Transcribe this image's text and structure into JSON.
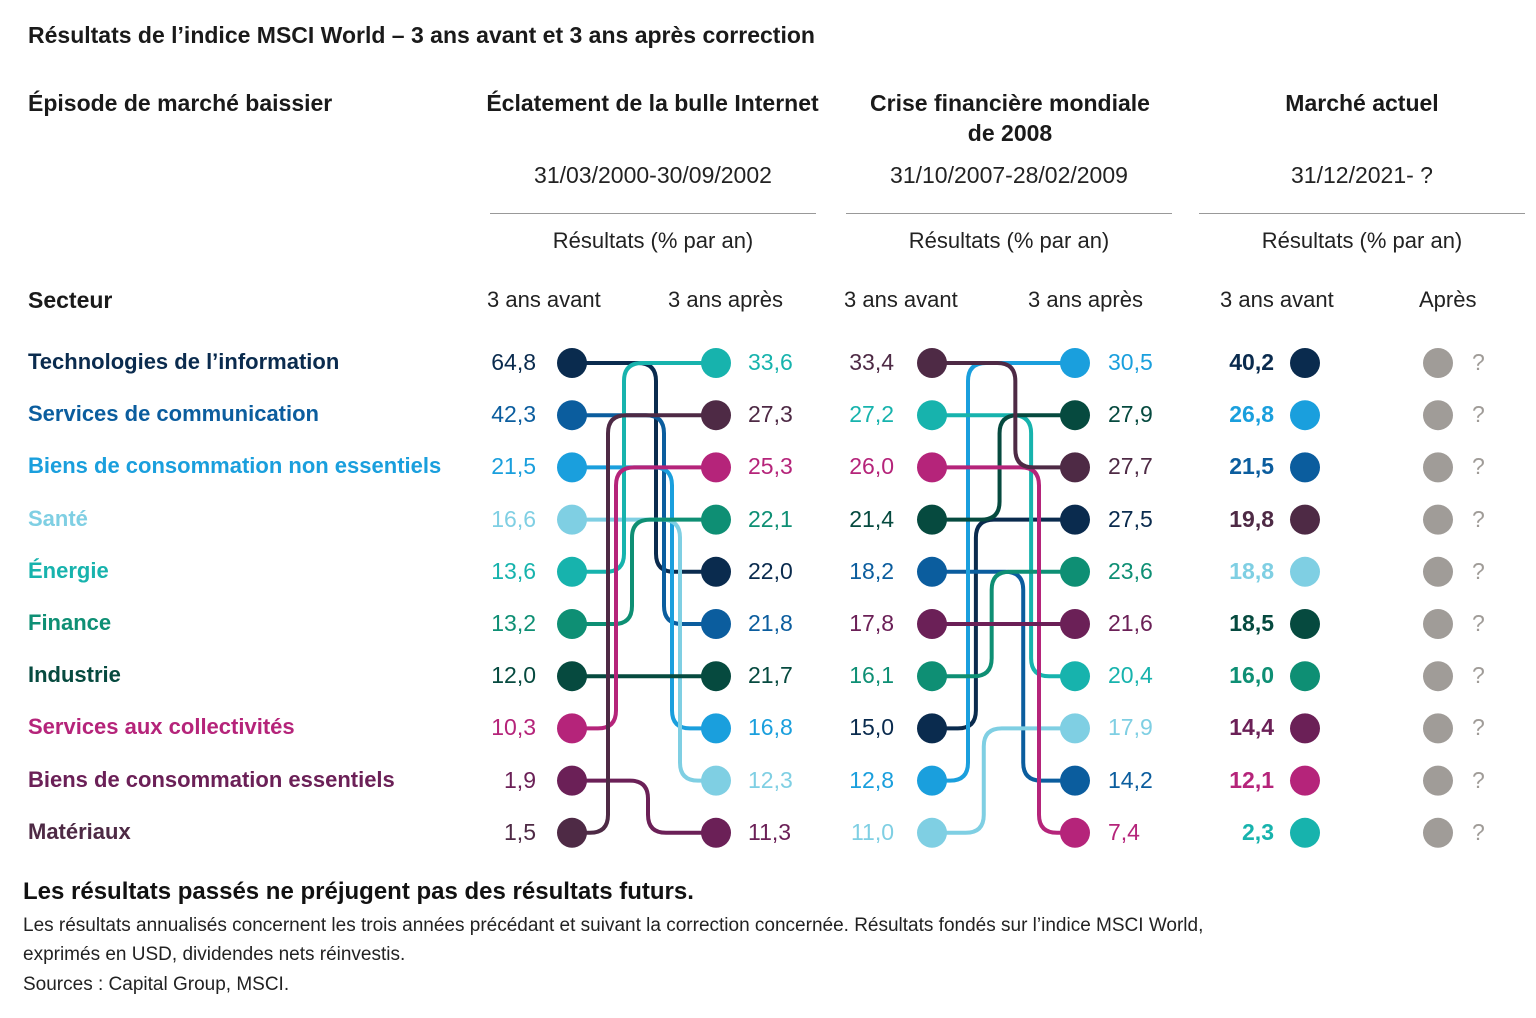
{
  "title": "Résultats de l’indice MSCI World – 3 ans avant et 3 ans après correction",
  "header": {
    "episode_label": "Épisode de marché baissier",
    "sector_label": "Secteur"
  },
  "chart_data": {
    "type": "bump",
    "periods": [
      {
        "name": "Éclatement de la bulle Internet",
        "dates": "31/03/2000-30/09/2002",
        "unit": "Résultats (% par an)",
        "before_label": "3 ans avant",
        "after_label": "3 ans après"
      },
      {
        "name": "Crise financière mondiale de 2008",
        "name_line1": "Crise financière mondiale",
        "name_line2": "de 2008",
        "dates": "31/10/2007-28/02/2009",
        "unit": "Résultats (% par an)",
        "before_label": "3 ans avant",
        "after_label": "3 ans après"
      },
      {
        "name": "Marché actuel",
        "dates": "31/12/2021- ?",
        "unit": "Résultats (% par an)",
        "before_label": "3 ans avant",
        "after_label": "Après",
        "after_value": "?"
      }
    ],
    "sectors": [
      {
        "name": "Technologies de l’information",
        "color": "#0a2b4e",
        "values": [
          "64,8",
          "22,0",
          "15,0",
          "27,5",
          "40,2"
        ]
      },
      {
        "name": "Services de communication",
        "color": "#0b5d9e",
        "values": [
          "42,3",
          "21,8",
          "18,2",
          "14,2",
          "21,5"
        ]
      },
      {
        "name": "Biens de consommation non essentiels",
        "color": "#1a9fdd",
        "values": [
          "21,5",
          "16,8",
          "12,8",
          "30,5",
          "26,8"
        ]
      },
      {
        "name": "Santé",
        "color": "#7fcfe3",
        "values": [
          "16,6",
          "12,3",
          "11,0",
          "17,9",
          "18,8"
        ]
      },
      {
        "name": "Énergie",
        "color": "#17b3ad",
        "values": [
          "13,6",
          "33,6",
          "27,2",
          "20,4",
          "2,3"
        ]
      },
      {
        "name": "Finance",
        "color": "#0e8f74",
        "values": [
          "13,2",
          "22,1",
          "16,1",
          "23,6",
          "16,0"
        ]
      },
      {
        "name": "Industrie",
        "color": "#064a3f",
        "values": [
          "12,0",
          "21,7",
          "21,4",
          "27,9",
          "18,5"
        ]
      },
      {
        "name": "Services aux collectivités",
        "color": "#b5247a",
        "values": [
          "10,3",
          "25,3",
          "26,0",
          "7,4",
          "12,1"
        ]
      },
      {
        "name": "Biens de consommation essentiels",
        "color": "#6b2057",
        "values": [
          "1,9",
          "11,3",
          "17,8",
          "21,6",
          "14,4"
        ]
      },
      {
        "name": "Matériaux",
        "color": "#4e2a45",
        "values": [
          "1,5",
          "27,3",
          "33,4",
          "27,7",
          "19,8"
        ]
      }
    ],
    "unknown_color": "#a09c98"
  },
  "footer": {
    "disclaimer": "Les résultats passés ne préjugent pas des résultats futurs.",
    "note1": "Les résultats annualisés concernent les trois années précédant et suivant la correction concernée. Résultats fondés sur l’indice MSCI World,",
    "note2": "exprimés en USD, dividendes nets réinvestis.",
    "sources": "Sources : Capital Group, MSCI."
  }
}
